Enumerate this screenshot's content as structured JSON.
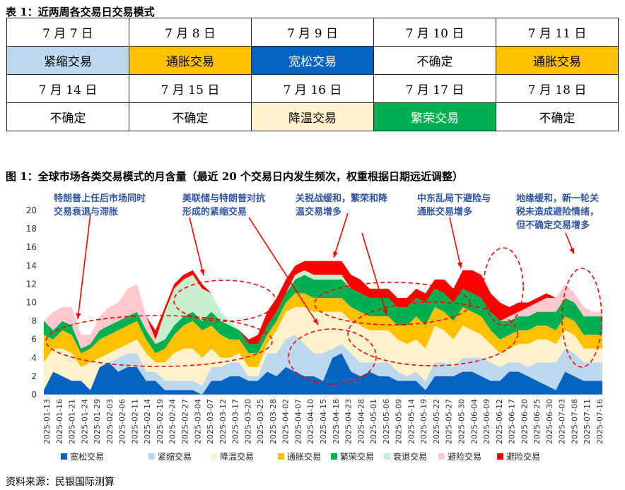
{
  "table": {
    "title": "表 1：近两周各交易日交易模式",
    "rows": [
      [
        {
          "text": "7 月 7 日",
          "bg": "#ffffff"
        },
        {
          "text": "7 月 8 日",
          "bg": "#ffffff"
        },
        {
          "text": "7 月 9 日",
          "bg": "#ffffff"
        },
        {
          "text": "7 月 10 日",
          "bg": "#ffffff"
        },
        {
          "text": "7 月 11 日",
          "bg": "#ffffff"
        }
      ],
      [
        {
          "text": "紧缩交易",
          "bg": "#bdd7ee",
          "color": "#000000"
        },
        {
          "text": "通胀交易",
          "bg": "#ffc000",
          "color": "#000000"
        },
        {
          "text": "宽松交易",
          "bg": "#0563c1",
          "color": "#ffffff"
        },
        {
          "text": "不确定",
          "bg": "#ffffff",
          "color": "#000000"
        },
        {
          "text": "通胀交易",
          "bg": "#ffc000",
          "color": "#000000"
        }
      ],
      [
        {
          "text": "7 月 14 日",
          "bg": "#ffffff"
        },
        {
          "text": "7 月 15 日",
          "bg": "#ffffff"
        },
        {
          "text": "7 月 16 日",
          "bg": "#ffffff"
        },
        {
          "text": "7 月 17 日",
          "bg": "#ffffff"
        },
        {
          "text": "7 月 18 日",
          "bg": "#ffffff"
        }
      ],
      [
        {
          "text": "不确定",
          "bg": "#ffffff",
          "color": "#000000"
        },
        {
          "text": "不确定",
          "bg": "#ffffff",
          "color": "#000000"
        },
        {
          "text": "降温交易",
          "bg": "#fff2cc",
          "color": "#000000"
        },
        {
          "text": "繁荣交易",
          "bg": "#00b050",
          "color": "#ffffff"
        },
        {
          "text": "不确定",
          "bg": "#ffffff",
          "color": "#000000"
        }
      ]
    ]
  },
  "figure": {
    "title": "图 1：全球市场各类交易模式的月含量（最近 20 个交易日内发生频次，权重根据日期远近调整）",
    "source": "资料来源：民银国际测算"
  },
  "chart_data": {
    "type": "area",
    "stacked": true,
    "ylim": [
      0,
      20
    ],
    "yticks": [
      0,
      2,
      4,
      6,
      8,
      10,
      12,
      14,
      16,
      18,
      20
    ],
    "xtick_labels": [
      "2025-01-13",
      "2025-01-16",
      "2025-01-21",
      "2025-01-24",
      "2025-01-29",
      "2025-02-03",
      "2025-02-06",
      "2025-02-11",
      "2025-02-14",
      "2025-02-19",
      "2025-02-24",
      "2025-02-27",
      "2025-03-04",
      "2025-03-07",
      "2025-03-12",
      "2025-03-17",
      "2025-03-20",
      "2025-03-25",
      "2025-03-28",
      "2025-04-02",
      "2025-04-07",
      "2025-04-10",
      "2025-04-15",
      "2025-04-18",
      "2025-04-23",
      "2025-04-28",
      "2025-05-01",
      "2025-05-06",
      "2025-05-09",
      "2025-05-14",
      "2025-05-19",
      "2025-05-22",
      "2025-05-27",
      "2025-05-30",
      "2025-06-04",
      "2025-06-09",
      "2025-06-12",
      "2025-06-17",
      "2025-06-20",
      "2025-06-25",
      "2025-06-30",
      "2025-07-03",
      "2025-07-08",
      "2025-07-11",
      "2025-07-16"
    ],
    "legend_position": "bottom",
    "series": [
      {
        "name": "宽松交易",
        "color": "#0563c1",
        "values": [
          0.5,
          2.5,
          2,
          1.5,
          1.5,
          0.5,
          3,
          3.5,
          2.5,
          3,
          3,
          1.5,
          1.5,
          0.5,
          0.5,
          0.5,
          0.5,
          0,
          1.5,
          1.5,
          2,
          2,
          1.5,
          1.5,
          2.5,
          2,
          3,
          2.5,
          2,
          2,
          1.5,
          4,
          4.5,
          2.5,
          2,
          2.5,
          2,
          2,
          1.5,
          1.5,
          1.5,
          0.5,
          2,
          2,
          2,
          2.5,
          2.5,
          2,
          1.5,
          1.5,
          2.5,
          2.5,
          2,
          1.5,
          1,
          0.5,
          2.5,
          2,
          1.5,
          1.5,
          1.5
        ]
      },
      {
        "name": "紧缩交易",
        "color": "#bdd7ee",
        "values": [
          0,
          0,
          0,
          0,
          0,
          0,
          0,
          0,
          1.5,
          1.5,
          1.5,
          1,
          1,
          1,
          1,
          1,
          1,
          1,
          1.5,
          1.5,
          1.5,
          1.5,
          0.5,
          0.5,
          2,
          2.5,
          3,
          4,
          3.5,
          2.5,
          3,
          1,
          1,
          2,
          1.5,
          1,
          1.5,
          1.5,
          1,
          0.5,
          1,
          1,
          1.5,
          1.5,
          1,
          1.5,
          1.5,
          2,
          2,
          1.5,
          1,
          1,
          1,
          2,
          2.5,
          3,
          2.5,
          2.5,
          2,
          2,
          2
        ]
      },
      {
        "name": "降温交易",
        "color": "#fff2cc",
        "values": [
          3,
          2.5,
          3,
          3,
          1.5,
          3,
          1,
          1,
          1,
          1,
          1.5,
          2,
          1,
          2,
          3,
          3.5,
          3.5,
          3,
          2,
          1,
          0.5,
          1,
          1,
          1,
          1,
          2.5,
          3,
          3,
          4,
          4.5,
          4.5,
          4,
          3.5,
          3.5,
          4,
          3.5,
          3.5,
          3.5,
          3.5,
          3.5,
          3.5,
          3.5,
          4,
          3.5,
          3,
          3.5,
          3,
          2.5,
          2,
          1.5,
          1.5,
          2,
          2.5,
          2.5,
          2.5,
          2,
          2,
          2,
          1.5,
          1.5,
          1.5
        ]
      },
      {
        "name": "通胀交易",
        "color": "#ffc000",
        "values": [
          3,
          1,
          2,
          2,
          1.5,
          1.5,
          2,
          2,
          2,
          2,
          2,
          1.5,
          1,
          1.5,
          2,
          2.5,
          3,
          3,
          2.5,
          2.5,
          2,
          1.5,
          1.5,
          1.5,
          1,
          1,
          1,
          1.5,
          1.5,
          1.5,
          1.5,
          1.5,
          1.5,
          1.5,
          1.5,
          1.5,
          1.5,
          1.5,
          1.5,
          2,
          2.5,
          2.5,
          2,
          2,
          2,
          2,
          2,
          2,
          1.5,
          1.5,
          1.5,
          1.5,
          1.5,
          1.5,
          1.5,
          1.5,
          1.5,
          1.5,
          1.5,
          1.5,
          1.5
        ]
      },
      {
        "name": "繁荣交易",
        "color": "#00b050",
        "values": [
          1.5,
          1,
          1,
          1,
          0.5,
          0.5,
          1,
          1,
          1,
          1,
          1,
          1,
          1,
          1,
          1,
          1,
          1,
          1,
          1.5,
          1.5,
          1.5,
          1,
          1,
          1,
          1,
          1,
          1,
          1.5,
          2,
          2,
          2,
          2,
          2,
          2,
          2,
          2,
          2,
          2,
          2,
          2,
          2,
          2.5,
          2,
          2,
          2,
          2,
          2,
          2,
          2,
          2,
          1.5,
          1.5,
          1.5,
          1.5,
          1.5,
          2,
          2,
          2,
          2,
          2,
          2
        ]
      },
      {
        "name": "衰退交易",
        "color": "#c6efce",
        "values": [
          0,
          0,
          0,
          0,
          0,
          0,
          0,
          0,
          0,
          0,
          0,
          0,
          0,
          3,
          4,
          4,
          4,
          3.5,
          2,
          1,
          0.5,
          0,
          0,
          0,
          0,
          0,
          0,
          0.5,
          0.5,
          0.5,
          0.5,
          0.5,
          0.5,
          0,
          0,
          0,
          0,
          0,
          0,
          0,
          0,
          0,
          0,
          0,
          0,
          0,
          0,
          0,
          0,
          0,
          0,
          0,
          0,
          0,
          0,
          0,
          0,
          0,
          0,
          0,
          0
        ]
      },
      {
        "name": "避险交易",
        "color": "#ffc7ce",
        "values": [
          0,
          2,
          1.5,
          2,
          1.5,
          1,
          1.5,
          2,
          2,
          3,
          3,
          1.5,
          0.5,
          0,
          0,
          0,
          0,
          0,
          0,
          0,
          0,
          0,
          0,
          0,
          0,
          0,
          0,
          0,
          0,
          0,
          0,
          0,
          0,
          0,
          0,
          0,
          0,
          0,
          0,
          0,
          0,
          0,
          0,
          0,
          0,
          0,
          0,
          0,
          0,
          0,
          0.5,
          0.5,
          1,
          1,
          1.5,
          1.5,
          1.5,
          1,
          1,
          0.5,
          0.5
        ]
      },
      {
        "name": "避险交易",
        "color": "#ff0000",
        "values": [
          0,
          0,
          0,
          0,
          0,
          0,
          0,
          0,
          0,
          0,
          0,
          0,
          1,
          0.5,
          0.5,
          0.5,
          0.5,
          0.5,
          0,
          0,
          0,
          0,
          0.5,
          1,
          1.5,
          1.5,
          1.5,
          1,
          1,
          1.5,
          1.5,
          1.5,
          1.5,
          1.5,
          1.5,
          1,
          1,
          1,
          1,
          1,
          1,
          1,
          1,
          1.5,
          1.5,
          2,
          2.5,
          2.5,
          2,
          2,
          1,
          1,
          0.5,
          0.5,
          0.5,
          0,
          0,
          0,
          0,
          0,
          0
        ]
      }
    ],
    "annotations": [
      {
        "lines": [
          "特朗普上任后市场同时",
          "交易衰退与滞胀"
        ]
      },
      {
        "lines": [
          "美联储与特朗普对抗",
          "形成的紧缩交易"
        ]
      },
      {
        "lines": [
          "关税战缓和，繁荣和降",
          "温交易增多"
        ]
      },
      {
        "lines": [
          "中东乱局下避险与",
          "通胀交易增多"
        ]
      },
      {
        "lines": [
          "地缘缓和，新一轮关",
          "税未造成避险情绪，",
          "但不确定交易增多"
        ]
      }
    ]
  }
}
